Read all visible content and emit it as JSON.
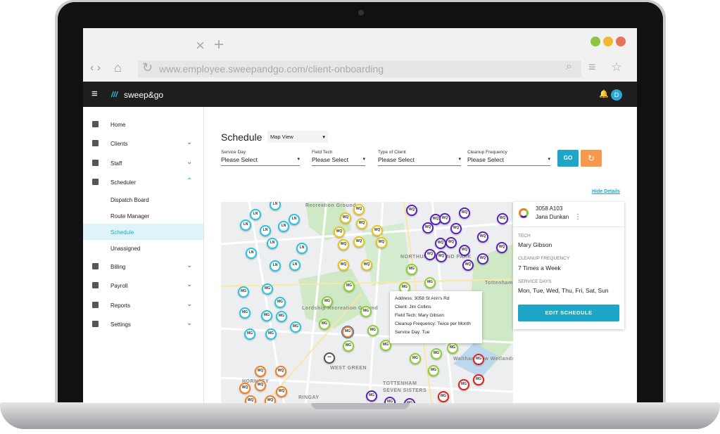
{
  "browser": {
    "url": "www.employee.sweepandgo.com/client-onboarding"
  },
  "app": {
    "logo": "sweep&go",
    "avatar": "D"
  },
  "sidebar": {
    "items": [
      "Home",
      "Clients",
      "Staff",
      "Scheduler",
      "Dispatch Board",
      "Route Manager",
      "Schedule",
      "Unassigned",
      "Billing",
      "Payroll",
      "Reports",
      "Settings"
    ]
  },
  "page": {
    "title": "Schedule",
    "view": "Map View",
    "filters": [
      {
        "label": "Service Day",
        "value": "Please Select"
      },
      {
        "label": "Field Tech",
        "value": "Please Select"
      },
      {
        "label": "Type of Client",
        "value": "Please Select"
      },
      {
        "label": "Cleanup Frequency",
        "value": "Please Select"
      }
    ],
    "go": "GO",
    "hide_details": "Hide Details"
  },
  "map": {
    "places": [
      "Recreation Ground",
      "Lordship Recreation Ground",
      "NORTHUMBERLAND PARK",
      "Tottenham Marshes",
      "HORNSEY",
      "WEST GREEN",
      "TOTTENHAM",
      "SEVEN SISTERS",
      "Walthamstow Wetlands",
      "RINGAY"
    ],
    "markers": [
      "LN",
      "LN",
      "LN",
      "LN",
      "LN",
      "LN",
      "LN",
      "LN",
      "LN",
      "LN",
      "LN",
      "MG",
      "MG",
      "MG",
      "MG",
      "MG",
      "MG",
      "MG",
      "MG",
      "MG",
      "WQ",
      "WQ",
      "WQ",
      "WQ",
      "WQ",
      "WQ",
      "WQ",
      "WQ",
      "WQ",
      "WQ",
      "WQ",
      "WQ",
      "WQ",
      "WQ",
      "WQ",
      "WQ",
      "WQ",
      "WQ",
      "WQ",
      "WQ",
      "WQ",
      "WQ",
      "WQ",
      "WQ",
      "WQ",
      "WQ",
      "MG",
      "MG",
      "MG",
      "MG",
      "MG",
      "MG",
      "MG",
      "MG",
      "MG",
      "MG",
      "MG",
      "MG",
      "MG",
      "MG",
      "MG",
      "WQ",
      "WQ",
      "WQ",
      "WQ",
      "WQ",
      "WQ",
      "WQ",
      "MG",
      "MG",
      "MG",
      "MG",
      "MG",
      "MG",
      "MG",
      "•••",
      "MG"
    ]
  },
  "tooltip": {
    "lines": [
      "Address: 3058 St Ann's Rd",
      "Client: Jim Collins",
      "Field Tech: Mary Gibson",
      "Cleanup Frequency: Twice per Month",
      "Service Day: Tue"
    ]
  },
  "details": {
    "id": "3058 A103",
    "client": "Jana Dunkan",
    "tech_label": "TECH",
    "tech": "Mary Gibson",
    "freq_label": "CLEANUP FREQUENCY",
    "freq": "7 Times a Week",
    "days_label": "SERVICE DAYS",
    "days": "Mon, Tue, Wed, Thu, Fri, Sat, Sun",
    "button": "EDIT SCHEDULE"
  }
}
